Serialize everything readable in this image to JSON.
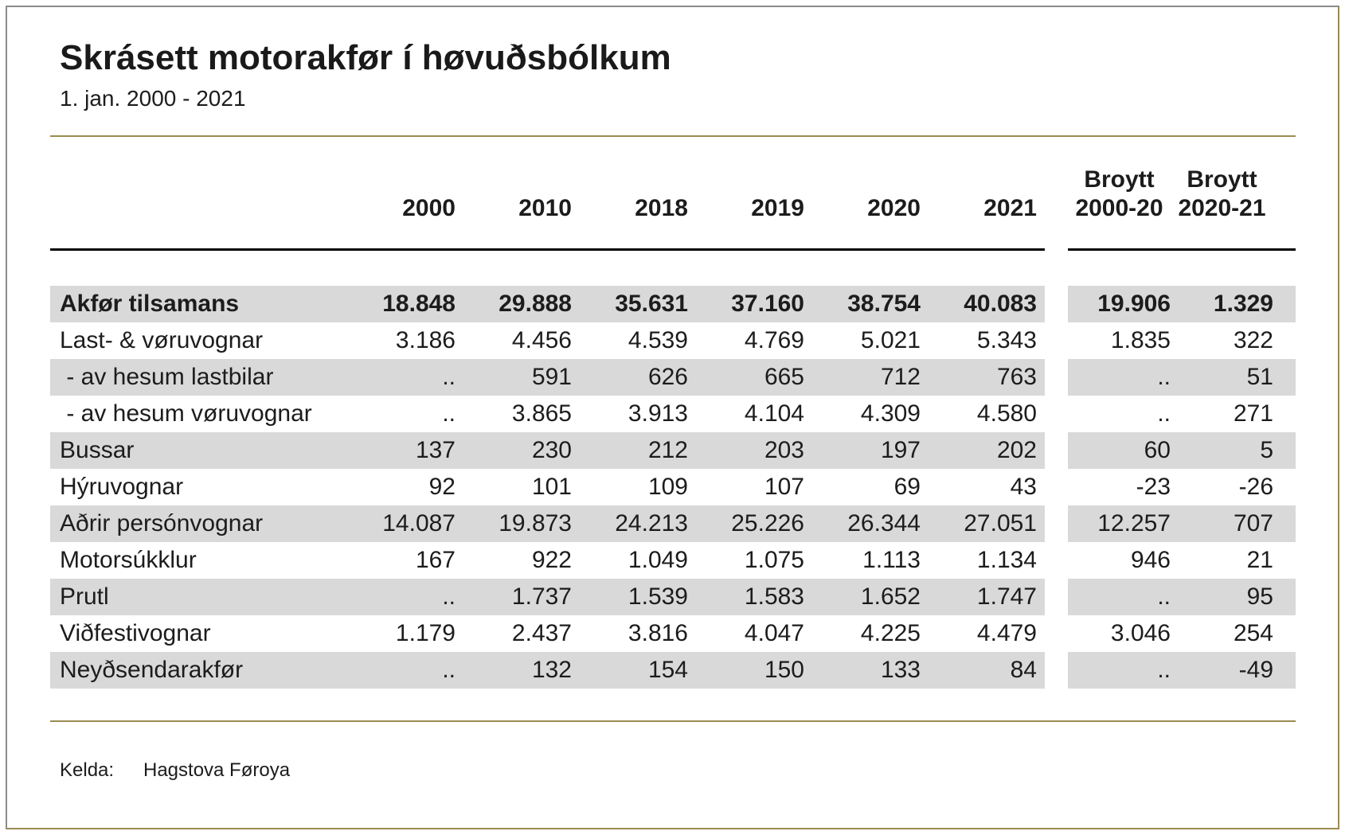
{
  "title": "Skrásett motorakfør í høvuðsbólkum",
  "subtitle": "1. jan. 2000 - 2021",
  "source": {
    "label": "Kelda:",
    "value": "Hagstova Føroya"
  },
  "colors": {
    "shaded_row": "#d9d9d9",
    "accent_line": "#9a8c50",
    "header_rule": "#000000",
    "frame_top_left": "#8c8c8c",
    "frame_bottom_right": "#9a8c50"
  },
  "chart_data": {
    "type": "table",
    "title": "Skrásett motorakfør í høvuðsbólkum",
    "subtitle": "1. jan. 2000 - 2021",
    "year_headers": [
      "2000",
      "2010",
      "2018",
      "2019",
      "2020",
      "2021"
    ],
    "change_headers": [
      {
        "line1": "Broytt",
        "line2": "2000-20"
      },
      {
        "line1": "Broytt",
        "line2": "2020-21"
      }
    ],
    "missing_symbol": "..",
    "rows": [
      {
        "label": "Akfør tilsamans",
        "bold": true,
        "shaded": true,
        "values": [
          "18.848",
          "29.888",
          "35.631",
          "37.160",
          "38.754",
          "40.083"
        ],
        "changes": [
          "19.906",
          "1.329"
        ]
      },
      {
        "label": "Last- & vøruvognar",
        "bold": false,
        "shaded": false,
        "values": [
          "3.186",
          "4.456",
          "4.539",
          "4.769",
          "5.021",
          "5.343"
        ],
        "changes": [
          "1.835",
          "322"
        ]
      },
      {
        "label": " - av hesum lastbilar",
        "bold": false,
        "shaded": true,
        "values": [
          "..",
          "591",
          "626",
          "665",
          "712",
          "763"
        ],
        "changes": [
          "..",
          "51"
        ]
      },
      {
        "label": " - av hesum vøruvognar",
        "bold": false,
        "shaded": false,
        "values": [
          "..",
          "3.865",
          "3.913",
          "4.104",
          "4.309",
          "4.580"
        ],
        "changes": [
          "..",
          "271"
        ]
      },
      {
        "label": "Bussar",
        "bold": false,
        "shaded": true,
        "values": [
          "137",
          "230",
          "212",
          "203",
          "197",
          "202"
        ],
        "changes": [
          "60",
          "5"
        ]
      },
      {
        "label": "Hýruvognar",
        "bold": false,
        "shaded": false,
        "values": [
          "92",
          "101",
          "109",
          "107",
          "69",
          "43"
        ],
        "changes": [
          "-23",
          "-26"
        ]
      },
      {
        "label": "Aðrir persónvognar",
        "bold": false,
        "shaded": true,
        "values": [
          "14.087",
          "19.873",
          "24.213",
          "25.226",
          "26.344",
          "27.051"
        ],
        "changes": [
          "12.257",
          "707"
        ]
      },
      {
        "label": "Motorsúkklur",
        "bold": false,
        "shaded": false,
        "values": [
          "167",
          "922",
          "1.049",
          "1.075",
          "1.113",
          "1.134"
        ],
        "changes": [
          "946",
          "21"
        ]
      },
      {
        "label": "Prutl",
        "bold": false,
        "shaded": true,
        "values": [
          "..",
          "1.737",
          "1.539",
          "1.583",
          "1.652",
          "1.747"
        ],
        "changes": [
          "..",
          "95"
        ]
      },
      {
        "label": "Viðfestivognar",
        "bold": false,
        "shaded": false,
        "values": [
          "1.179",
          "2.437",
          "3.816",
          "4.047",
          "4.225",
          "4.479"
        ],
        "changes": [
          "3.046",
          "254"
        ]
      },
      {
        "label": "Neyðsendarakfør",
        "bold": false,
        "shaded": true,
        "values": [
          "..",
          "132",
          "154",
          "150",
          "133",
          "84"
        ],
        "changes": [
          "..",
          "-49"
        ]
      }
    ]
  }
}
